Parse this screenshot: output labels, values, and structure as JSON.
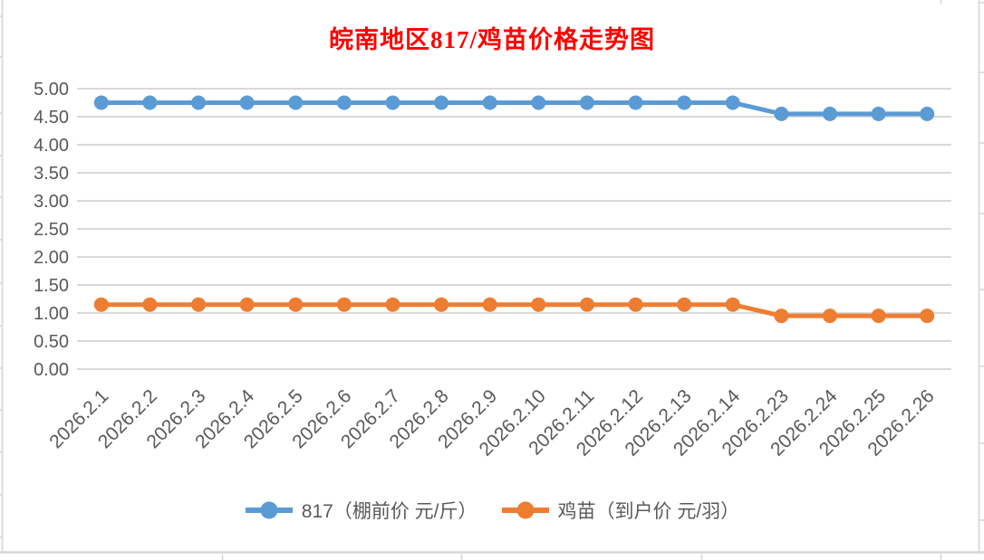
{
  "colors": {
    "title": "#FF0000",
    "axis_text": "#595959",
    "gridline": "#D9D9D9",
    "worksheet_line": "#D6D6D6",
    "background": "#FFFFFF"
  },
  "chart_data": {
    "type": "line",
    "title": "皖南地区817/鸡苗价格走势图",
    "categories": [
      "2026.2.1",
      "2026.2.2",
      "2026.2.3",
      "2026.2.4",
      "2026.2.5",
      "2026.2.6",
      "2026.2.7",
      "2026.2.8",
      "2026.2.9",
      "2026.2.10",
      "2026.2.11",
      "2026.2.12",
      "2026.2.13",
      "2026.2.14",
      "2026.2.23",
      "2026.2.24",
      "2026.2.25",
      "2026.2.26"
    ],
    "series": [
      {
        "name": "817（棚前价 元/斤）",
        "color": "#5B9BD5",
        "values": [
          4.75,
          4.75,
          4.75,
          4.75,
          4.75,
          4.75,
          4.75,
          4.75,
          4.75,
          4.75,
          4.75,
          4.75,
          4.75,
          4.75,
          4.55,
          4.55,
          4.55,
          4.55
        ]
      },
      {
        "name": "鸡苗（到户价 元/羽）",
        "color": "#ED7D31",
        "values": [
          1.15,
          1.15,
          1.15,
          1.15,
          1.15,
          1.15,
          1.15,
          1.15,
          1.15,
          1.15,
          1.15,
          1.15,
          1.15,
          1.15,
          0.95,
          0.95,
          0.95,
          0.95
        ]
      }
    ],
    "ylim": [
      0,
      5
    ],
    "ytick_step": 0.5,
    "ytick_labels": [
      "5.00",
      "4.50",
      "4.00",
      "3.50",
      "3.00",
      "2.50",
      "2.00",
      "1.50",
      "1.00",
      "0.50",
      "0.00"
    ],
    "grid": true,
    "legend_position": "bottom",
    "x_label_rotation": -45
  }
}
